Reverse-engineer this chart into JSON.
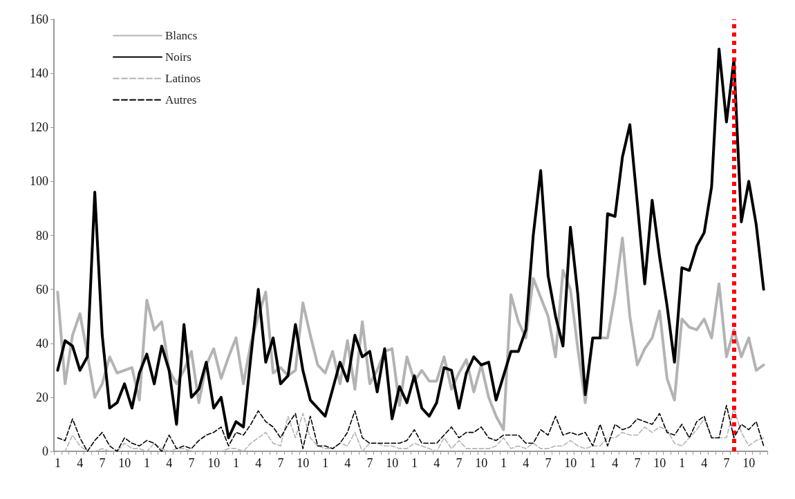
{
  "chart_data": {
    "type": "line",
    "categories": [
      "1",
      null,
      null,
      "4",
      null,
      null,
      "7",
      null,
      null,
      "10",
      null,
      null,
      "1",
      null,
      null,
      "4",
      null,
      null,
      "7",
      null,
      null,
      "10",
      null,
      null,
      "1",
      null,
      null,
      "4",
      null,
      null,
      "7",
      null,
      null,
      "10",
      null,
      null,
      "1",
      null,
      null,
      "4",
      null,
      null,
      "7",
      null,
      null,
      "10",
      null,
      null,
      "1",
      null,
      null,
      "4",
      null,
      null,
      "7",
      null,
      null,
      "10",
      null,
      null,
      "1",
      null,
      null,
      "4",
      null,
      null,
      "7",
      null,
      null,
      "10",
      null,
      null,
      "1",
      null,
      null,
      "4",
      null,
      null,
      "7",
      null,
      null,
      "10",
      null,
      null,
      "1",
      null,
      null,
      "4",
      null,
      null,
      "7",
      null,
      null,
      "10",
      null,
      null
    ],
    "ylim": [
      0,
      160
    ],
    "yticks": [
      0,
      20,
      40,
      60,
      80,
      100,
      120,
      140,
      160
    ],
    "grid": false,
    "legend": "top left",
    "marker": "none",
    "series": [
      {
        "name": "Blancs",
        "color": "#b3b3b3",
        "line_style": "solid",
        "values": [
          59,
          25,
          43,
          51,
          36,
          20,
          25,
          35,
          29,
          30,
          31,
          19,
          56,
          45,
          48,
          30,
          25,
          30,
          37,
          18,
          32,
          38,
          27,
          35,
          42,
          25,
          40,
          50,
          59,
          29,
          31,
          28,
          30,
          55,
          43,
          32,
          29,
          37,
          25,
          41,
          23,
          48,
          25,
          30,
          37,
          38,
          17,
          35,
          26,
          30,
          26,
          26,
          35,
          23,
          29,
          34,
          22,
          32,
          20,
          13,
          8,
          58,
          48,
          42,
          64,
          57,
          50,
          35,
          67,
          60,
          38,
          18,
          42,
          42,
          42,
          58,
          79,
          50,
          32,
          38,
          42,
          52,
          27,
          19,
          49,
          46,
          45,
          49,
          42,
          62,
          35,
          45,
          35,
          42,
          30,
          32
        ]
      },
      {
        "name": "Noirs",
        "color": "#000000",
        "line_style": "solid",
        "values": [
          30,
          41,
          39,
          30,
          35,
          96,
          43,
          16,
          18,
          25,
          16,
          29,
          36,
          25,
          39,
          30,
          10,
          47,
          20,
          23,
          33,
          16,
          20,
          5,
          11,
          9,
          35,
          60,
          33,
          42,
          25,
          28,
          47,
          30,
          19,
          16,
          13,
          23,
          33,
          26,
          43,
          35,
          37,
          22,
          38,
          12,
          24,
          18,
          28,
          16,
          13,
          18,
          31,
          30,
          16,
          29,
          35,
          32,
          33,
          19,
          28,
          37,
          37,
          45,
          80,
          104,
          65,
          50,
          39,
          83,
          58,
          21,
          42,
          42,
          88,
          87,
          109,
          121,
          92,
          62,
          93,
          72,
          54,
          33,
          68,
          67,
          76,
          81,
          98,
          149,
          122,
          145,
          85,
          100,
          84,
          60
        ]
      },
      {
        "name": "Latinos",
        "color": "#b3b3b3",
        "line_style": "dashed",
        "values": [
          0,
          0,
          6,
          2,
          0,
          0,
          1,
          0,
          0,
          3,
          1,
          1,
          0,
          3,
          1,
          0,
          1,
          1,
          0,
          0,
          0,
          0,
          0,
          1,
          1,
          0,
          3,
          5,
          7,
          3,
          2,
          13,
          5,
          14,
          5,
          2,
          1,
          1,
          3,
          2,
          7,
          0,
          3,
          3,
          2,
          2,
          1,
          1,
          3,
          2,
          1,
          0,
          5,
          1,
          4,
          1,
          1,
          1,
          1,
          2,
          5,
          1,
          2,
          1,
          3,
          1,
          1,
          2,
          2,
          4,
          2,
          1,
          2,
          2,
          5,
          5,
          7,
          6,
          6,
          9,
          7,
          9,
          8,
          3,
          2,
          5,
          8,
          12,
          5,
          5,
          5,
          16,
          7,
          2,
          4,
          5
        ]
      },
      {
        "name": "Autres",
        "color": "#000000",
        "line_style": "dashed",
        "values": [
          5,
          4,
          12,
          5,
          0,
          4,
          7,
          2,
          0,
          5,
          3,
          2,
          4,
          3,
          0,
          6,
          1,
          2,
          1,
          4,
          6,
          7,
          9,
          2,
          7,
          6,
          10,
          15,
          11,
          9,
          5,
          10,
          14,
          1,
          13,
          2,
          2,
          1,
          3,
          7,
          15,
          5,
          3,
          3,
          3,
          3,
          3,
          4,
          8,
          3,
          3,
          3,
          6,
          9,
          5,
          7,
          7,
          9,
          5,
          4,
          6,
          6,
          6,
          3,
          3,
          8,
          6,
          13,
          6,
          7,
          6,
          7,
          2,
          10,
          2,
          10,
          8,
          9,
          12,
          11,
          10,
          14,
          7,
          6,
          10,
          5,
          11,
          13,
          5,
          5,
          17,
          5,
          10,
          8,
          11,
          2
        ]
      }
    ]
  }
}
